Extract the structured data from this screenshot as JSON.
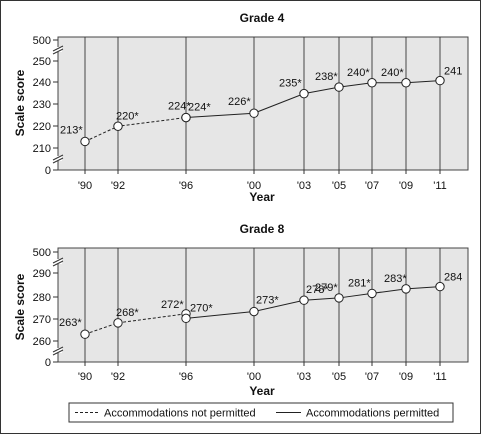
{
  "chart_data": [
    {
      "type": "line",
      "title": "Grade 4",
      "xlabel": "Year",
      "ylabel": "Scale score",
      "x": [
        "'90",
        "'92",
        "'96",
        "'00",
        "'03",
        "'05",
        "'07",
        "'09",
        "'11"
      ],
      "yticks": [
        "500",
        "250",
        "240",
        "230",
        "220",
        "210",
        "0"
      ],
      "ylim": [
        210,
        250
      ],
      "axis_break": true,
      "series": [
        {
          "name": "Accommodations not permitted",
          "style": "dashed",
          "x": [
            "'90",
            "'92",
            "'96"
          ],
          "values": [
            213,
            220,
            224
          ],
          "labels": [
            "213*",
            "220*",
            "224*"
          ]
        },
        {
          "name": "Accommodations permitted",
          "style": "solid",
          "x": [
            "'96",
            "'00",
            "'03",
            "'05",
            "'07",
            "'09",
            "'11"
          ],
          "values": [
            224,
            226,
            235,
            238,
            240,
            240,
            241
          ],
          "labels": [
            "224*",
            "226*",
            "235*",
            "238*",
            "240*",
            "240*",
            "241"
          ]
        }
      ]
    },
    {
      "type": "line",
      "title": "Grade 8",
      "xlabel": "Year",
      "ylabel": "Scale score",
      "x": [
        "'90",
        "'92",
        "'96",
        "'00",
        "'03",
        "'05",
        "'07",
        "'09",
        "'11"
      ],
      "yticks": [
        "500",
        "290",
        "280",
        "270",
        "260",
        "0"
      ],
      "ylim": [
        260,
        290
      ],
      "axis_break": true,
      "series": [
        {
          "name": "Accommodations not permitted",
          "style": "dashed",
          "x": [
            "'90",
            "'92",
            "'96"
          ],
          "values": [
            263,
            268,
            272
          ],
          "labels": [
            "263*",
            "268*",
            "272*"
          ]
        },
        {
          "name": "Accommodations permitted",
          "style": "solid",
          "x": [
            "'96",
            "'00",
            "'03",
            "'05",
            "'07",
            "'09",
            "'11"
          ],
          "values": [
            270,
            273,
            278,
            279,
            281,
            283,
            284
          ],
          "labels": [
            "270*",
            "273*",
            "278*",
            "279*",
            "281*",
            "283*",
            "284"
          ]
        }
      ]
    }
  ],
  "legend": {
    "dashed_label": "Accommodations not permitted",
    "solid_label": "Accommodations permitted"
  },
  "colors": {
    "plot_background": "#e6e6e6",
    "line": "#222222",
    "marker_fill": "#ffffff"
  }
}
